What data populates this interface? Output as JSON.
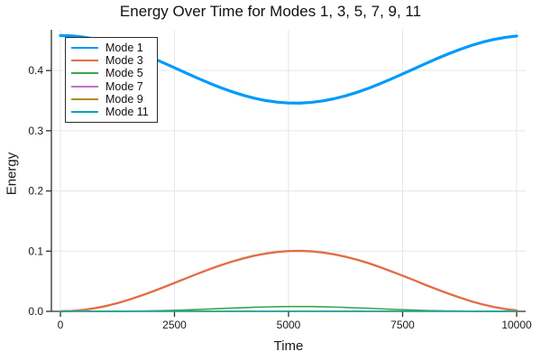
{
  "chart_data": {
    "type": "line",
    "title": "Energy Over Time for Modes 1, 3, 5, 7, 9, 11",
    "xlabel": "Time",
    "ylabel": "Energy",
    "xlim": [
      0,
      10000
    ],
    "ylim": [
      0,
      0.4677
    ],
    "grid": true,
    "x_ticks": {
      "values": [
        0,
        2500,
        5000,
        7500,
        10000
      ],
      "labels": [
        "0",
        "2500",
        "5000",
        "7500",
        "10000"
      ]
    },
    "y_ticks": {
      "values": [
        0.0,
        0.1,
        0.2,
        0.3,
        0.4
      ],
      "labels": [
        "0.0",
        "0.1",
        "0.2",
        "0.3",
        "0.4"
      ]
    },
    "colors": {
      "background": "#FFFFFF",
      "axis": "#2F2F2F",
      "grid": "#E6E6E6",
      "text": "#1A1A1A"
    },
    "legend": {
      "position": "top-left",
      "border_color": "#2B2B2B",
      "background": "#FFFFFF"
    },
    "x": [
      0,
      250,
      500,
      750,
      1000,
      1250,
      1500,
      1750,
      2000,
      2250,
      2500,
      2750,
      3000,
      3250,
      3500,
      3750,
      4000,
      4250,
      4500,
      4750,
      5000,
      5250,
      5500,
      5750,
      6000,
      6250,
      6500,
      6750,
      7000,
      7250,
      7500,
      7750,
      8000,
      8250,
      8500,
      8750,
      9000,
      9250,
      9500,
      9750,
      10000
    ],
    "series": [
      {
        "name": "Mode 1",
        "color": "#009AFA",
        "line_width": 3.2,
        "y": [
          0.4582,
          0.4576,
          0.4556,
          0.4524,
          0.4481,
          0.4426,
          0.4363,
          0.4291,
          0.4213,
          0.4131,
          0.4046,
          0.396,
          0.3876,
          0.3795,
          0.372,
          0.3651,
          0.3591,
          0.3541,
          0.3502,
          0.3475,
          0.346,
          0.3459,
          0.3471,
          0.3495,
          0.3532,
          0.358,
          0.3638,
          0.3705,
          0.378,
          0.3859,
          0.3943,
          0.4029,
          0.4114,
          0.4197,
          0.4276,
          0.4349,
          0.4415,
          0.4471,
          0.4516,
          0.4551,
          0.4573
        ]
      },
      {
        "name": "Mode 3",
        "color": "#E26E46",
        "line_width": 2.4,
        "y": [
          0.0,
          0.0006,
          0.0023,
          0.0051,
          0.0089,
          0.0137,
          0.0193,
          0.0256,
          0.0324,
          0.0397,
          0.0473,
          0.0548,
          0.0623,
          0.0695,
          0.0763,
          0.0824,
          0.0878,
          0.0925,
          0.0961,
          0.0987,
          0.1001,
          0.1005,
          0.0997,
          0.0978,
          0.0947,
          0.0907,
          0.0858,
          0.0801,
          0.0736,
          0.0666,
          0.0593,
          0.0518,
          0.0441,
          0.0367,
          0.0297,
          0.023,
          0.0169,
          0.0116,
          0.0073,
          0.0038,
          0.0015
        ]
      },
      {
        "name": "Mode 5",
        "color": "#3DA44D",
        "line_width": 1.6,
        "y": [
          0.0,
          0.0,
          0.0,
          0.0,
          0.0001,
          0.0001,
          0.0003,
          0.0005,
          0.0008,
          0.0012,
          0.0018,
          0.0024,
          0.0031,
          0.0038,
          0.0046,
          0.0054,
          0.0061,
          0.0068,
          0.0073,
          0.0077,
          0.0079,
          0.008,
          0.0079,
          0.0076,
          0.0071,
          0.0065,
          0.0058,
          0.0051,
          0.0043,
          0.0035,
          0.0028,
          0.0021,
          0.0015,
          0.0011,
          0.0007,
          0.0004,
          0.0002,
          0.0001,
          0.0,
          0.0,
          0.0
        ]
      },
      {
        "name": "Mode 7",
        "color": "#C371D2",
        "line_width": 1.4,
        "y": [
          0.0004,
          0.0004,
          0.0004,
          0.0004,
          0.0004,
          0.0004,
          0.0004,
          0.0004,
          0.0004,
          0.0004,
          0.0004,
          0.0004,
          0.0004,
          0.0004,
          0.0004,
          0.0004,
          0.0004,
          0.0004,
          0.0004,
          0.0004,
          0.0004,
          0.0004,
          0.0004,
          0.0004,
          0.0004,
          0.0004,
          0.0004,
          0.0004,
          0.0004,
          0.0004,
          0.0004,
          0.0004,
          0.0004,
          0.0004,
          0.0004,
          0.0004,
          0.0004,
          0.0004,
          0.0004,
          0.0004,
          0.0004
        ]
      },
      {
        "name": "Mode 9",
        "color": "#AC8D18",
        "line_width": 1.4,
        "y": [
          0.0002,
          0.0002,
          0.0002,
          0.0002,
          0.0002,
          0.0002,
          0.0002,
          0.0002,
          0.0002,
          0.0002,
          0.0002,
          0.0002,
          0.0002,
          0.0002,
          0.0002,
          0.0002,
          0.0002,
          0.0002,
          0.0002,
          0.0002,
          0.0002,
          0.0002,
          0.0002,
          0.0002,
          0.0002,
          0.0002,
          0.0002,
          0.0002,
          0.0002,
          0.0002,
          0.0002,
          0.0002,
          0.0002,
          0.0002,
          0.0002,
          0.0002,
          0.0002,
          0.0002,
          0.0002,
          0.0002,
          0.0002
        ]
      },
      {
        "name": "Mode 11",
        "color": "#00AAAE",
        "line_width": 1.4,
        "y": [
          0.0001,
          0.0001,
          0.0001,
          0.0001,
          0.0001,
          0.0001,
          0.0001,
          0.0001,
          0.0001,
          0.0001,
          0.0001,
          0.0001,
          0.0001,
          0.0001,
          0.0001,
          0.0001,
          0.0001,
          0.0001,
          0.0001,
          0.0001,
          0.0001,
          0.0001,
          0.0001,
          0.0001,
          0.0001,
          0.0001,
          0.0001,
          0.0001,
          0.0001,
          0.0001,
          0.0001,
          0.0001,
          0.0001,
          0.0001,
          0.0001,
          0.0001,
          0.0001,
          0.0001,
          0.0001,
          0.0001,
          0.0001
        ]
      }
    ]
  }
}
